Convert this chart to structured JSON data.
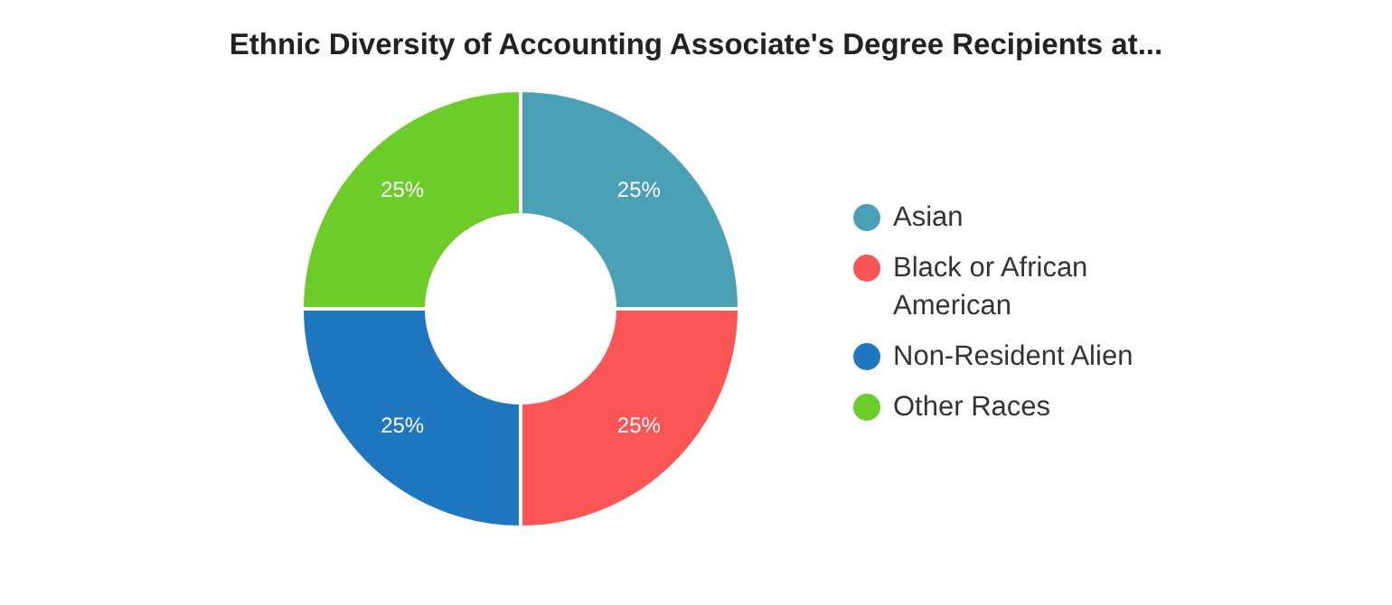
{
  "chart_data": {
    "type": "donut",
    "title": "Ethnic Diversity of Accounting Associate's Degree Recipients at...",
    "categories": [
      "Asian",
      "Black or African American",
      "Non-Resident Alien",
      "Other Races"
    ],
    "values": [
      25,
      25,
      25,
      25
    ],
    "colors": [
      "#4aa0b5",
      "#fc5556",
      "#1f77c0",
      "#6ccc2a"
    ],
    "value_labels": [
      "25%",
      "25%",
      "25%",
      "25%"
    ],
    "legend": "right"
  }
}
